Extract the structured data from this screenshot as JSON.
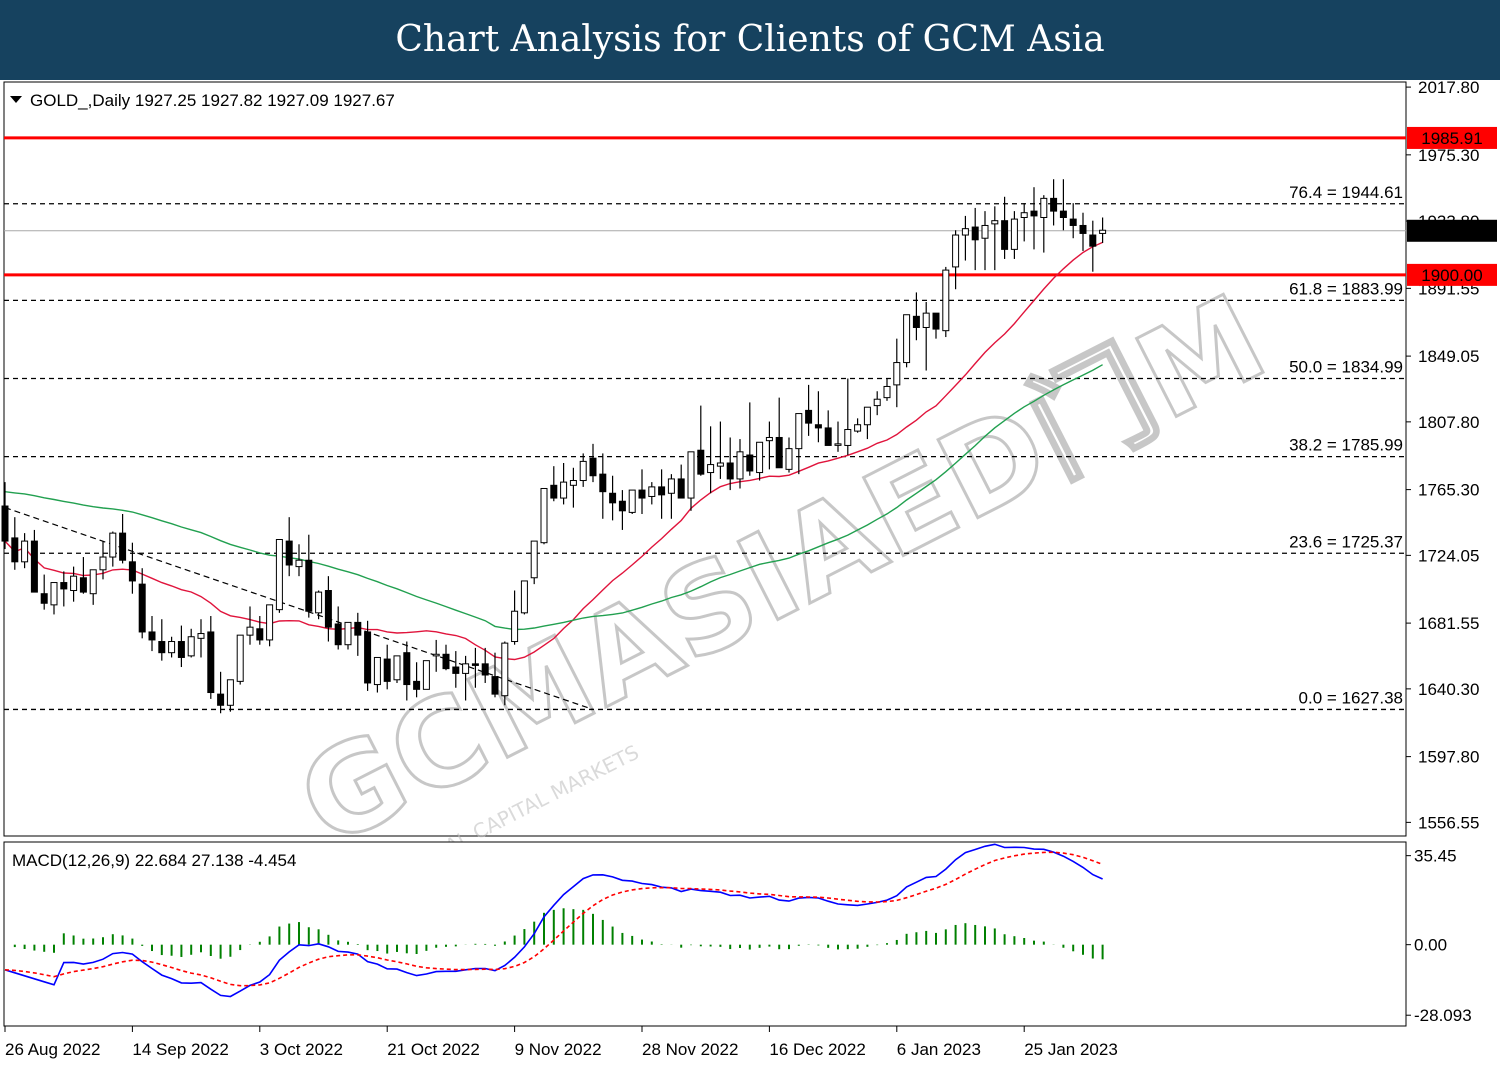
{
  "header": {
    "title": "Chart Analysis for Clients of GCM Asia"
  },
  "chart_data": {
    "type": "candlestick",
    "symbol_label": "GOLD_,Daily",
    "ohlc_label": "1927.25 1927.82 1927.09 1927.67",
    "current_price": "1927.67",
    "price_axis": {
      "min": 1548.0,
      "max": 2021.0,
      "ticks": [
        "2017.80",
        "1975.30",
        "1933.80",
        "1891.55",
        "1849.05",
        "1807.80",
        "1765.30",
        "1724.05",
        "1681.55",
        "1640.30",
        "1597.80",
        "1556.55"
      ]
    },
    "x_axis": {
      "dates": [
        "26 Aug 2022",
        "14 Sep 2022",
        "3 Oct 2022",
        "21 Oct 2022",
        "9 Nov 2022",
        "28 Nov 2022",
        "16 Dec 2022",
        "6 Jan 2023",
        "25 Jan 2023"
      ],
      "date_indices": [
        0,
        13,
        26,
        39,
        52,
        65,
        78,
        91,
        104
      ]
    },
    "horizontal_lines": [
      {
        "value": 1985.91,
        "label": "1985.91",
        "color": "#ff0000"
      },
      {
        "value": 1900.0,
        "label": "1900.00",
        "color": "#ff0000"
      }
    ],
    "fibonacci": [
      {
        "value": 1944.61,
        "label": "76.4 = 1944.61"
      },
      {
        "value": 1883.99,
        "label": "61.8 = 1883.99"
      },
      {
        "value": 1834.99,
        "label": "50.0 = 1834.99"
      },
      {
        "value": 1785.99,
        "label": "38.2 = 1785.99"
      },
      {
        "value": 1725.37,
        "label": "23.6 = 1725.37"
      },
      {
        "value": 1627.38,
        "label": "0.0 = 1627.38"
      }
    ],
    "candles": {
      "open": [
        1755,
        1735,
        1720,
        1733,
        1700,
        1693,
        1707,
        1702,
        1710,
        1700,
        1715,
        1723,
        1738,
        1720,
        1706,
        1676,
        1670,
        1663,
        1670,
        1661,
        1672,
        1676,
        1637,
        1630,
        1645,
        1674,
        1678,
        1671,
        1690,
        1733,
        1717,
        1721,
        1688,
        1702,
        1681,
        1668,
        1682,
        1676,
        1643,
        1659,
        1646,
        1663,
        1645,
        1640,
        1661,
        1662,
        1654,
        1650,
        1656,
        1656,
        1648,
        1636,
        1670,
        1688,
        1710,
        1732,
        1768,
        1760,
        1768,
        1771,
        1785,
        1775,
        1763,
        1758,
        1751,
        1765,
        1761,
        1767,
        1763,
        1772,
        1760,
        1790,
        1776,
        1780,
        1782,
        1772,
        1787,
        1776,
        1796,
        1798,
        1778,
        1791,
        1815,
        1806,
        1804,
        1794,
        1793,
        1802,
        1806,
        1818,
        1823,
        1831,
        1845,
        1874,
        1867,
        1876,
        1865,
        1905,
        1925,
        1930,
        1923,
        1932,
        1934,
        1916,
        1936,
        1940,
        1936,
        1948,
        1940,
        1935,
        1931,
        1925,
        1926
      ],
      "high": [
        1770,
        1748,
        1738,
        1740,
        1712,
        1705,
        1714,
        1717,
        1723,
        1715,
        1733,
        1739,
        1750,
        1732,
        1716,
        1686,
        1684,
        1673,
        1680,
        1678,
        1684,
        1686,
        1651,
        1640,
        1660,
        1692,
        1686,
        1681,
        1700,
        1748,
        1731,
        1737,
        1702,
        1711,
        1692,
        1681,
        1688,
        1683,
        1653,
        1668,
        1655,
        1670,
        1657,
        1654,
        1671,
        1668,
        1664,
        1661,
        1666,
        1666,
        1663,
        1670,
        1702,
        1708,
        1730,
        1760,
        1780,
        1782,
        1779,
        1788,
        1794,
        1788,
        1774,
        1765,
        1765,
        1778,
        1770,
        1778,
        1775,
        1781,
        1774,
        1818,
        1805,
        1808,
        1798,
        1797,
        1820,
        1795,
        1808,
        1823,
        1798,
        1807,
        1831,
        1827,
        1815,
        1808,
        1835,
        1810,
        1814,
        1827,
        1835,
        1860,
        1873,
        1889,
        1883,
        1875,
        1905,
        1928,
        1937,
        1942,
        1940,
        1943,
        1949,
        1940,
        1945,
        1955,
        1950,
        1960,
        1960,
        1945,
        1939,
        1934,
        1936
      ],
      "low": [
        1728,
        1715,
        1716,
        1718,
        1690,
        1687,
        1692,
        1695,
        1700,
        1693,
        1709,
        1717,
        1719,
        1700,
        1672,
        1664,
        1658,
        1660,
        1654,
        1660,
        1660,
        1634,
        1625,
        1626,
        1643,
        1668,
        1668,
        1667,
        1688,
        1711,
        1711,
        1685,
        1684,
        1670,
        1665,
        1665,
        1661,
        1639,
        1638,
        1640,
        1644,
        1633,
        1635,
        1640,
        1651,
        1652,
        1641,
        1633,
        1641,
        1644,
        1635,
        1630,
        1668,
        1687,
        1706,
        1731,
        1758,
        1756,
        1754,
        1767,
        1770,
        1747,
        1746,
        1740,
        1750,
        1750,
        1756,
        1747,
        1747,
        1767,
        1752,
        1774,
        1763,
        1772,
        1765,
        1766,
        1774,
        1771,
        1778,
        1787,
        1776,
        1775,
        1799,
        1795,
        1794,
        1789,
        1787,
        1801,
        1797,
        1812,
        1821,
        1817,
        1842,
        1859,
        1840,
        1860,
        1861,
        1891,
        1909,
        1903,
        1903,
        1903,
        1910,
        1910,
        1921,
        1916,
        1914,
        1931,
        1928,
        1923,
        1915,
        1902,
        1920
      ],
      "close": [
        1733,
        1720,
        1733,
        1701,
        1694,
        1707,
        1703,
        1711,
        1701,
        1715,
        1723,
        1738,
        1721,
        1708,
        1676,
        1671,
        1663,
        1670,
        1660,
        1673,
        1675,
        1638,
        1630,
        1646,
        1674,
        1679,
        1671,
        1693,
        1734,
        1718,
        1721,
        1689,
        1701,
        1679,
        1668,
        1682,
        1674,
        1644,
        1660,
        1645,
        1661,
        1643,
        1640,
        1658,
        1662,
        1653,
        1650,
        1656,
        1655,
        1649,
        1637,
        1669,
        1689,
        1708,
        1733,
        1766,
        1760,
        1770,
        1771,
        1783,
        1774,
        1764,
        1757,
        1752,
        1765,
        1760,
        1767,
        1762,
        1772,
        1760,
        1789,
        1775,
        1781,
        1782,
        1772,
        1789,
        1777,
        1795,
        1798,
        1779,
        1791,
        1813,
        1807,
        1804,
        1793,
        1794,
        1803,
        1806,
        1817,
        1822,
        1830,
        1845,
        1875,
        1867,
        1876,
        1866,
        1903,
        1925,
        1929,
        1922,
        1931,
        1934,
        1916,
        1935,
        1939,
        1937,
        1948,
        1940,
        1936,
        1931,
        1926,
        1918,
        1928
      ]
    },
    "series": [
      {
        "name": "",
        "color": "#e0143c",
        "period": 20
      },
      {
        "name": "",
        "color": "#22a050",
        "period": 50
      }
    ],
    "trendline": {
      "color": "#000000",
      "style": "dashed"
    },
    "macd": {
      "label": "MACD(12,26,9) 22.684 27.138 -4.454",
      "params": [
        12,
        26,
        9
      ],
      "values": {
        "macd": 22.684,
        "signal": 27.138,
        "histogram": -4.454
      },
      "axis_ticks": [
        "35.45",
        "0.00",
        "-28.093"
      ],
      "range": [
        -30.0,
        38.5
      ],
      "colors": {
        "histogram": "#008000",
        "macd": "#0000ff",
        "signal": "#ff0000"
      }
    },
    "watermark": {
      "main": "GCMASIAED门M",
      "sub": "GLOBAL CAPITAL MARKETS"
    }
  }
}
